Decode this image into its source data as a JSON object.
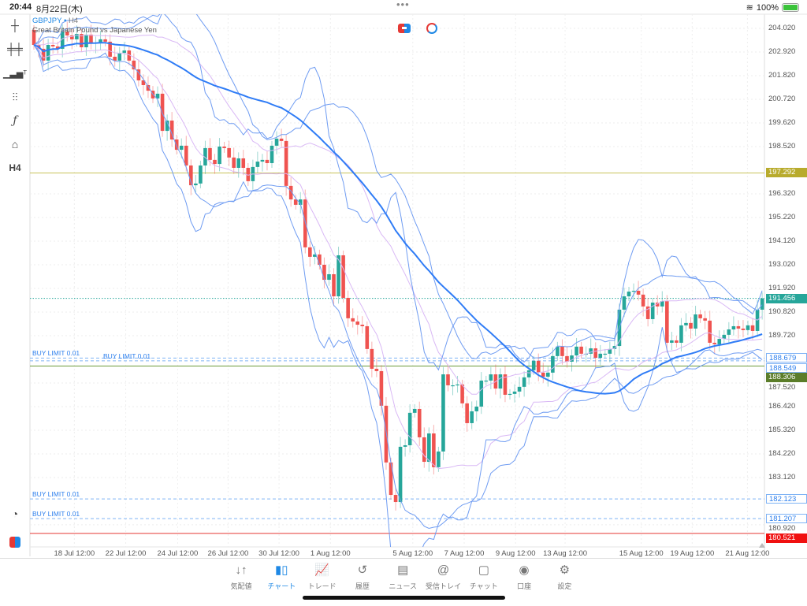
{
  "status_bar": {
    "time": "20:44",
    "date": "8月22日(木)",
    "battery": "100%"
  },
  "toolbar": {
    "timeframe": "H4"
  },
  "chart_header": {
    "symbol": "GBPJPY",
    "separator": "•",
    "timeframe": "H4",
    "description": "Great Britain Pound vs Japanese Yen"
  },
  "colors": {
    "bull": "#26a69a",
    "bear": "#ef5350",
    "ma": "#2f7cf6",
    "band": "#6f9cf2",
    "band2": "#d9b8f5"
  },
  "chart_data": {
    "type": "candlestick",
    "title": "GBPJPY, H4",
    "ylim": [
      180.5,
      204.4
    ],
    "first_open": 203.95,
    "closes": [
      203.25,
      203.07,
      202.52,
      203.25,
      203.18,
      203.07,
      203.87,
      203.69,
      203.51,
      203.76,
      203.14,
      203.73,
      203.32,
      203.36,
      203.51,
      203.4,
      202.7,
      202.52,
      202.88,
      202.99,
      202.52,
      202.11,
      201.6,
      201.38,
      201.12,
      200.76,
      200.98,
      199.25,
      199.73,
      198.85,
      198.37,
      198.56,
      197.64,
      196.72,
      196.8,
      197.64,
      198.45,
      197.9,
      197.71,
      198.52,
      198.45,
      198.01,
      197.53,
      197.97,
      197.53,
      196.91,
      197.57,
      197.82,
      197.9,
      197.75,
      198.56,
      198.89,
      198.78,
      196.69,
      196.06,
      195.81,
      196.06,
      193.83,
      193.39,
      193.5,
      193.02,
      192.32,
      192.58,
      191.55,
      193.46,
      191.48,
      190.53,
      190.38,
      190.23,
      190.16,
      189.1,
      188.18,
      188.07,
      186.46,
      183.82,
      182.31,
      181.98,
      184.55,
      184.62,
      186.13,
      186.31,
      184.99,
      183.85,
      185.17,
      183.6,
      184.33,
      187.92,
      187.41,
      187.41,
      187.45,
      186.57,
      185.65,
      186.2,
      186.42,
      187.63,
      187.63,
      187.92,
      187.26,
      187.92,
      186.97,
      187.01,
      187.12,
      187.34,
      187.78,
      188.11,
      188.55,
      188.0,
      187.81,
      188.0,
      188.77,
      189.21,
      188.77,
      188.51,
      188.8,
      189.21,
      188.88,
      188.88,
      189.13,
      188.69,
      188.88,
      188.88,
      189.1,
      189.24,
      190.93,
      191.55,
      191.77,
      191.81,
      191.63,
      191.08,
      190.49,
      191.26,
      191.08,
      191.33,
      189.39,
      189.5,
      189.39,
      190.2,
      190.31,
      190.05,
      190.71,
      190.53,
      190.42,
      189.39,
      189.32,
      189.57,
      189.76,
      190.01,
      190.16,
      190.05,
      189.98,
      190.2,
      189.94,
      190.93,
      191.456
    ],
    "indicators": {
      "ma_period": 50,
      "bands": [
        {
          "period": 20,
          "dev": 2
        },
        {
          "period": 20,
          "dev": 1
        },
        {
          "period": 10,
          "dev": 3
        }
      ]
    },
    "price_ticks": [
      "204.020",
      "202.920",
      "201.820",
      "200.720",
      "199.620",
      "198.520",
      "196.320",
      "195.220",
      "194.120",
      "193.020",
      "191.920",
      "190.820",
      "189.720",
      "187.520",
      "186.420",
      "185.320",
      "184.220",
      "183.120",
      "180.920"
    ],
    "time_ticks": [
      {
        "label": "18 Jul 12:00",
        "bar": 8.5
      },
      {
        "label": "22 Jul 12:00",
        "bar": 19.3
      },
      {
        "label": "24 Jul 12:00",
        "bar": 30.2
      },
      {
        "label": "26 Jul 12:00",
        "bar": 40.8
      },
      {
        "label": "30 Jul 12:00",
        "bar": 51.5
      },
      {
        "label": "1 Aug 12:00",
        "bar": 62.3
      },
      {
        "label": "5 Aug 12:00",
        "bar": 79.6
      },
      {
        "label": "7 Aug 12:00",
        "bar": 90.4
      },
      {
        "label": "9 Aug 12:00",
        "bar": 101.2
      },
      {
        "label": "13 Aug 12:00",
        "bar": 111.6
      },
      {
        "label": "15 Aug 12:00",
        "bar": 127.6
      },
      {
        "label": "19 Aug 12:00",
        "bar": 138.3
      },
      {
        "label": "21 Aug 12:00",
        "bar": 149.9
      }
    ],
    "levels": [
      {
        "name": "level-197",
        "price": 197.292,
        "label": "197.292",
        "style": "solid",
        "color": "#c9c25a",
        "bg": "#b8ab2c",
        "fg": "#fff"
      },
      {
        "name": "bid-line",
        "price": 191.456,
        "label": "191.456",
        "style": "dotted",
        "color": "#26a69a",
        "bg": "#26a69a",
        "fg": "#fff"
      },
      {
        "name": "buy-limit-1",
        "price": 188.679,
        "label": "188.679",
        "style": "dashed",
        "color": "#7fb3f5",
        "bg": "#fff",
        "fg": "#2f80ed",
        "order": "BUY LIMIT 0.01"
      },
      {
        "name": "buy-limit-2",
        "price": 188.549,
        "label": "188.549",
        "style": "dashed",
        "color": "#7fb3f5",
        "bg": "#fff",
        "fg": "#2f80ed",
        "order": "BUY LIMIT 0.01"
      },
      {
        "name": "level-188",
        "price": 188.306,
        "label": "188.306",
        "style": "solid",
        "color": "#6b9a3a",
        "bg": "#5b7d2a",
        "fg": "#fff"
      },
      {
        "name": "buy-limit-3",
        "price": 182.123,
        "label": "182.123",
        "style": "dashed",
        "color": "#7fb3f5",
        "bg": "#fff",
        "fg": "#2f80ed",
        "order": "BUY LIMIT 0.01"
      },
      {
        "name": "buy-limit-4",
        "price": 181.207,
        "label": "181.207",
        "style": "dashed",
        "color": "#7fb3f5",
        "bg": "#fff",
        "fg": "#2f80ed",
        "order": "BUY LIMIT 0.01"
      },
      {
        "name": "level-180",
        "price": 180.521,
        "label": "180.521",
        "style": "solid",
        "color": "#e53935",
        "bg": "#f01010",
        "fg": "#fff"
      }
    ]
  },
  "tabs": [
    {
      "label": "気配値",
      "icon": "↓↑"
    },
    {
      "label": "チャート",
      "icon": "▮▯"
    },
    {
      "label": "トレード",
      "icon": "📈"
    },
    {
      "label": "履歴",
      "icon": "↺"
    },
    {
      "label": "ニュース",
      "icon": "▤"
    },
    {
      "label": "受信トレイ",
      "icon": "@"
    },
    {
      "label": "チャット",
      "icon": "▢"
    },
    {
      "label": "口座",
      "icon": "◉"
    },
    {
      "label": "設定",
      "icon": "⚙"
    }
  ]
}
